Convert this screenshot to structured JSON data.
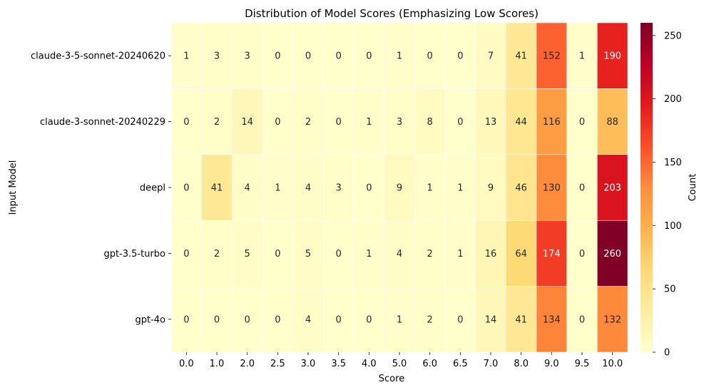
{
  "chart_data": {
    "type": "heatmap",
    "title": "Distribution of Model Scores (Emphasizing Low Scores)",
    "xlabel": "Score",
    "ylabel": "Input Model",
    "x_categories": [
      "0.0",
      "1.0",
      "2.0",
      "2.5",
      "3.0",
      "3.5",
      "4.0",
      "5.0",
      "6.0",
      "6.5",
      "7.0",
      "8.0",
      "9.0",
      "9.5",
      "10.0"
    ],
    "y_categories": [
      "claude-3-5-sonnet-20240620",
      "claude-3-sonnet-20240229",
      "deepl",
      "gpt-3.5-turbo",
      "gpt-4o"
    ],
    "values": [
      [
        1,
        3,
        3,
        0,
        0,
        0,
        0,
        1,
        0,
        0,
        7,
        41,
        152,
        1,
        190
      ],
      [
        0,
        2,
        14,
        0,
        2,
        0,
        1,
        3,
        8,
        0,
        13,
        44,
        116,
        0,
        88
      ],
      [
        0,
        41,
        4,
        1,
        4,
        3,
        0,
        9,
        1,
        1,
        9,
        46,
        130,
        0,
        203
      ],
      [
        0,
        2,
        5,
        0,
        5,
        0,
        1,
        4,
        2,
        1,
        16,
        64,
        174,
        0,
        260
      ],
      [
        0,
        0,
        0,
        0,
        4,
        0,
        0,
        1,
        2,
        0,
        14,
        41,
        134,
        0,
        132
      ]
    ],
    "colorbar": {
      "label": "Count",
      "min": 0,
      "max": 260,
      "ticks": [
        0,
        50,
        100,
        150,
        200,
        250
      ],
      "colormap": "YlOrRd"
    },
    "grid": false,
    "cell_border_color": "#ffffff"
  }
}
